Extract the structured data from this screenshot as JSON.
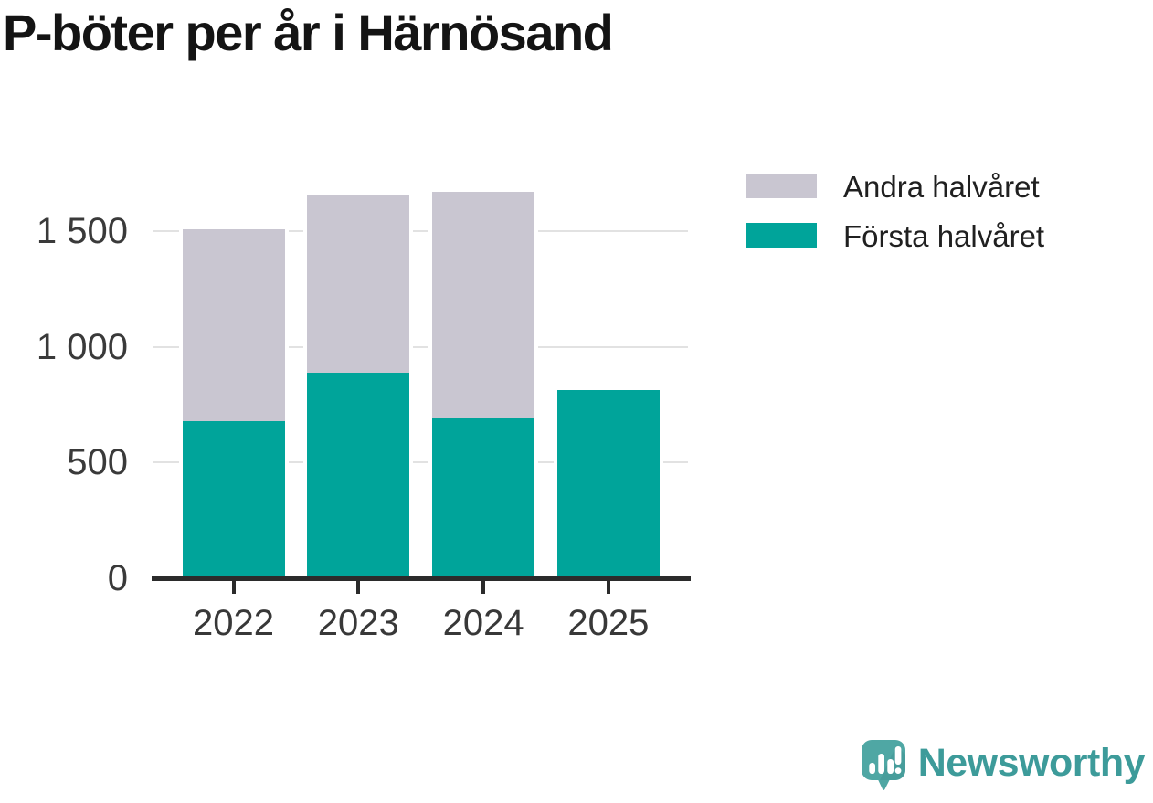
{
  "title": "P-böter per år i Härnösand",
  "legend": {
    "items": [
      {
        "label": "Andra halvåret",
        "color": "#C9C6D1"
      },
      {
        "label": "Första halvåret",
        "color": "#00A49A"
      }
    ]
  },
  "chart_data": {
    "type": "bar",
    "stacked": true,
    "title": "P-böter per år i Härnösand",
    "categories": [
      "2022",
      "2023",
      "2024",
      "2025"
    ],
    "series": [
      {
        "name": "Första halvåret",
        "color": "#00A49A",
        "values": [
          680,
          890,
          690,
          815
        ]
      },
      {
        "name": "Andra halvåret",
        "color": "#C9C6D1",
        "values": [
          830,
          770,
          980,
          0
        ]
      }
    ],
    "totals": [
      1510,
      1660,
      1670,
      815
    ],
    "xlabel": "",
    "ylabel": "",
    "ylim": [
      0,
      1750
    ],
    "yticks": [
      {
        "value": 0,
        "label": "0"
      },
      {
        "value": 500,
        "label": "500"
      },
      {
        "value": 1000,
        "label": "1 000"
      },
      {
        "value": 1500,
        "label": "1 500"
      }
    ],
    "grid": true,
    "legend_position": "top-right",
    "axis_color": "#2B2B2B",
    "gridline_color": "#E2E2E2",
    "tick_label_color": "#3A3A3A"
  },
  "branding": {
    "name": "Newsworthy",
    "icon": "newsworthy-bubble-chart-icon",
    "text_color": "#3D9B9A",
    "icon_color": "#4FA7A4",
    "icon_shade_color": "#3E9290"
  }
}
